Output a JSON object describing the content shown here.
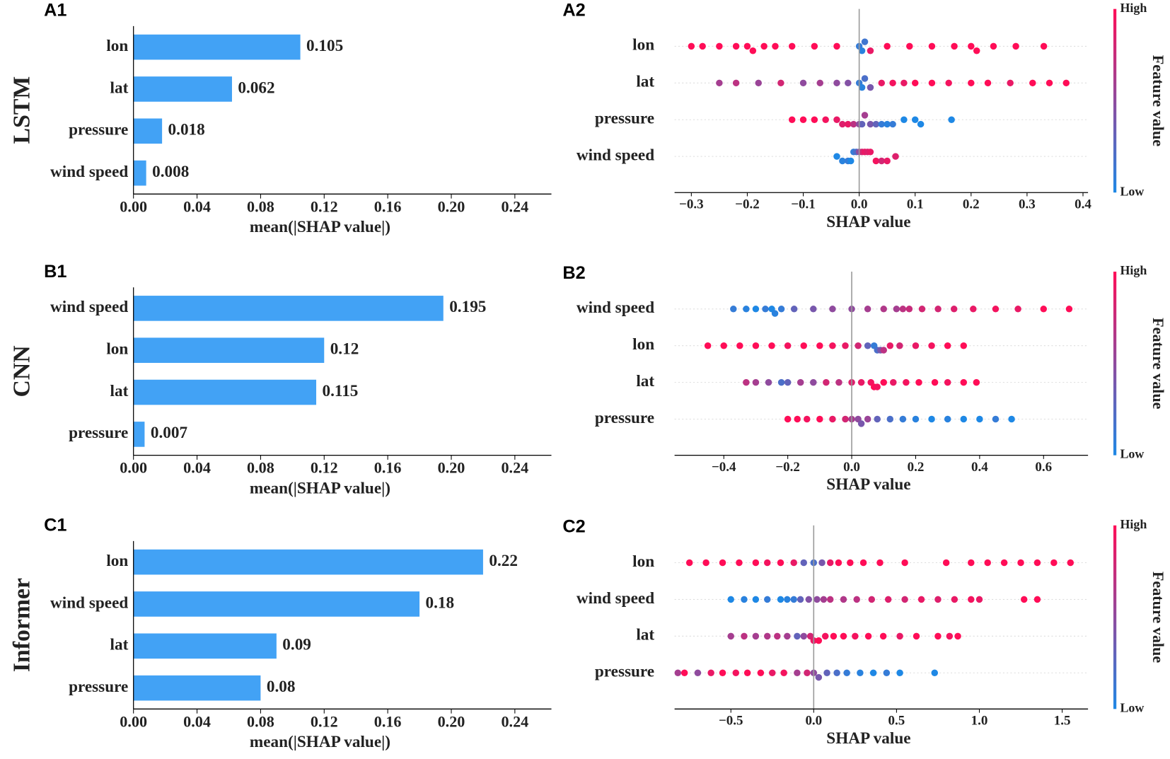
{
  "chart_data": [
    {
      "type": "bar",
      "panel": "A1",
      "row_label": "LSTM",
      "categories": [
        "lon",
        "lat",
        "pressure",
        "wind speed"
      ],
      "values": [
        0.105,
        0.062,
        0.018,
        0.008
      ],
      "color": "#42a2f5",
      "xlabel": "mean(|SHAP value|)",
      "xlim": [
        0,
        0.263
      ],
      "xticks": [
        {
          "value": 0,
          "label": "0.00"
        },
        0.04,
        0.08,
        0.12,
        0.16,
        {
          "value": 0.2,
          "label": "0.20"
        },
        0.24
      ]
    },
    {
      "type": "beeswarm",
      "panel": "A2",
      "xlabel": "SHAP value",
      "xlim": [
        -0.33,
        0.409
      ],
      "colors": [
        "#1e88e5",
        "#ff0d57"
      ],
      "colorbar_label": "Feature value",
      "colorbar_high": "High",
      "colorbar_low": "Low",
      "xticks": [
        {
          "value": -0.3,
          "label": "−0.3"
        },
        {
          "value": -0.2,
          "label": "−0.2"
        },
        {
          "value": -0.1,
          "label": "−0.1"
        },
        {
          "value": 0,
          "label": "0.0"
        },
        0.1,
        0.2,
        0.3,
        0.4
      ],
      "series": [
        {
          "name": "lon",
          "x": [
            -0.3,
            -0.28,
            -0.25,
            -0.22,
            -0.2,
            -0.19,
            -0.17,
            -0.15,
            -0.12,
            -0.08,
            -0.04,
            0,
            0.005,
            0.01,
            0.02,
            0.05,
            0.09,
            0.13,
            0.17,
            0.2,
            0.21,
            0.24,
            0.28,
            0.33
          ],
          "feature_values": [
            1,
            1,
            1,
            1,
            1,
            1,
            1,
            1,
            1,
            1,
            1,
            0.1,
            0.05,
            0.15,
            0.9,
            1,
            1,
            1,
            1,
            1,
            1,
            1,
            1,
            1
          ]
        },
        {
          "name": "lat",
          "x": [
            -0.25,
            -0.22,
            -0.18,
            -0.14,
            -0.1,
            -0.07,
            -0.04,
            -0.02,
            0,
            0.005,
            0.01,
            0.02,
            0.04,
            0.06,
            0.08,
            0.1,
            0.13,
            0.16,
            0.2,
            0.23,
            0.27,
            0.31,
            0.34,
            0.37
          ],
          "feature_values": [
            0.6,
            0.7,
            0.55,
            0.8,
            0.5,
            0.6,
            0.5,
            0.45,
            0.1,
            0.05,
            0.2,
            0.4,
            0.9,
            0.95,
            0.9,
            1,
            1,
            0.95,
            1,
            1,
            0.9,
            1,
            1,
            1
          ]
        },
        {
          "name": "pressure",
          "x": [
            -0.12,
            -0.1,
            -0.08,
            -0.06,
            -0.04,
            -0.03,
            -0.02,
            -0.01,
            0,
            0.005,
            0.01,
            0.02,
            0.03,
            0.04,
            0.05,
            0.06,
            0.08,
            0.1,
            0.11,
            0.165
          ],
          "feature_values": [
            1,
            1,
            1,
            0.95,
            0.9,
            0.85,
            0.9,
            0.7,
            0.5,
            0.3,
            0.6,
            0.4,
            0.3,
            0.1,
            0.05,
            0.1,
            0,
            0,
            0,
            0
          ]
        },
        {
          "name": "wind speed",
          "x": [
            -0.04,
            -0.03,
            -0.02,
            -0.015,
            -0.01,
            -0.005,
            0,
            0.005,
            0.01,
            0.015,
            0.02,
            0.03,
            0.04,
            0.05,
            0.065
          ],
          "feature_values": [
            0,
            0.05,
            0.1,
            0,
            0.1,
            0.2,
            0.5,
            0.8,
            0.9,
            0.85,
            0.9,
            0.95,
            0.8,
            0.9,
            0.85
          ]
        }
      ]
    },
    {
      "type": "bar",
      "panel": "B1",
      "row_label": "CNN",
      "categories": [
        "wind speed",
        "lon",
        "lat",
        "pressure"
      ],
      "values": [
        0.195,
        0.12,
        0.115,
        0.007
      ],
      "color": "#42a2f5",
      "xlabel": "mean(|SHAP value|)",
      "xlim": [
        0,
        0.263
      ],
      "xticks": [
        {
          "value": 0,
          "label": "0.00"
        },
        0.04,
        0.08,
        0.12,
        0.16,
        {
          "value": 0.2,
          "label": "0.20"
        },
        0.24
      ]
    },
    {
      "type": "beeswarm",
      "panel": "B2",
      "xlabel": "SHAP value",
      "xlim": [
        -0.554,
        0.739
      ],
      "colors": [
        "#1e88e5",
        "#ff0d57"
      ],
      "colorbar_label": "Feature value",
      "colorbar_high": "High",
      "colorbar_low": "Low",
      "xticks": [
        {
          "value": -0.4,
          "label": "−0.4"
        },
        {
          "value": -0.2,
          "label": "−0.2"
        },
        {
          "value": 0,
          "label": "0.0"
        },
        0.2,
        0.4,
        0.6
      ],
      "series": [
        {
          "name": "wind speed",
          "x": [
            -0.37,
            -0.33,
            -0.3,
            -0.27,
            -0.25,
            -0.24,
            -0.22,
            -0.18,
            -0.12,
            -0.06,
            0,
            0.05,
            0.1,
            0.14,
            0.16,
            0.18,
            0.22,
            0.27,
            0.32,
            0.38,
            0.45,
            0.52,
            0.6,
            0.68
          ],
          "feature_values": [
            0.1,
            0.05,
            0,
            0.1,
            0,
            0.05,
            0.1,
            0.3,
            0.4,
            0.5,
            0.5,
            0.6,
            0.65,
            0.6,
            0.7,
            0.75,
            0.8,
            0.8,
            0.85,
            0.9,
            0.95,
            0.9,
            1,
            1
          ]
        },
        {
          "name": "lon",
          "x": [
            -0.45,
            -0.4,
            -0.35,
            -0.3,
            -0.25,
            -0.2,
            -0.15,
            -0.1,
            -0.06,
            -0.02,
            0.02,
            0.05,
            0.07,
            0.08,
            0.09,
            0.1,
            0.12,
            0.15,
            0.2,
            0.25,
            0.3,
            0.35
          ],
          "feature_values": [
            1,
            1,
            1,
            1,
            1,
            0.95,
            1,
            1,
            0.95,
            0.9,
            0.8,
            0.3,
            0.1,
            0.2,
            0.4,
            0.7,
            0.9,
            0.8,
            0.9,
            0.95,
            1,
            1
          ]
        },
        {
          "name": "lat",
          "x": [
            -0.33,
            -0.3,
            -0.26,
            -0.22,
            -0.2,
            -0.16,
            -0.12,
            -0.08,
            -0.04,
            0,
            0.03,
            0.06,
            0.07,
            0.08,
            0.1,
            0.13,
            0.17,
            0.21,
            0.26,
            0.3,
            0.35,
            0.39
          ],
          "feature_values": [
            0.7,
            0.6,
            0.5,
            0.2,
            0.3,
            0.6,
            0.5,
            0.8,
            0.7,
            0.85,
            0.9,
            0.95,
            1,
            0.95,
            1,
            0.9,
            0.95,
            1,
            1,
            0.95,
            1,
            1
          ]
        },
        {
          "name": "pressure",
          "x": [
            -0.2,
            -0.17,
            -0.14,
            -0.1,
            -0.06,
            -0.02,
            0,
            0.02,
            0.03,
            0.05,
            0.08,
            0.12,
            0.16,
            0.2,
            0.25,
            0.3,
            0.35,
            0.4,
            0.45,
            0.5
          ],
          "feature_values": [
            1,
            1,
            0.95,
            1,
            0.9,
            0.8,
            0.6,
            0.5,
            0.4,
            0.55,
            0.3,
            0.2,
            0.1,
            0.05,
            0,
            0.05,
            0,
            0,
            0.1,
            0
          ]
        }
      ]
    },
    {
      "type": "bar",
      "panel": "C1",
      "row_label": "Informer",
      "categories": [
        "lon",
        "wind speed",
        "lat",
        "pressure"
      ],
      "values": [
        0.22,
        0.18,
        0.09,
        0.08
      ],
      "color": "#42a2f5",
      "xlabel": "mean(|SHAP value|)",
      "xlim": [
        0,
        0.263
      ],
      "xticks": [
        {
          "value": 0,
          "label": "0.00"
        },
        0.04,
        0.08,
        0.12,
        0.16,
        {
          "value": 0.2,
          "label": "0.20"
        },
        0.24
      ]
    },
    {
      "type": "beeswarm",
      "panel": "C2",
      "xlabel": "SHAP value",
      "xlim": [
        -0.84,
        1.656
      ],
      "colors": [
        "#1e88e5",
        "#ff0d57"
      ],
      "colorbar_label": "Feature value",
      "colorbar_high": "High",
      "colorbar_low": "Low",
      "xticks": [
        {
          "value": -0.5,
          "label": "−0.5"
        },
        {
          "value": 0,
          "label": "0.0"
        },
        0.5,
        {
          "value": 1,
          "label": "1.0"
        },
        1.5
      ],
      "series": [
        {
          "name": "lon",
          "x": [
            -0.75,
            -0.65,
            -0.55,
            -0.45,
            -0.35,
            -0.28,
            -0.2,
            -0.12,
            -0.06,
            0,
            0.05,
            0.1,
            0.15,
            0.22,
            0.3,
            0.4,
            0.55,
            0.8,
            0.95,
            1.05,
            1.15,
            1.25,
            1.35,
            1.45,
            1.55
          ],
          "feature_values": [
            1,
            1,
            1,
            1,
            1,
            0.95,
            1,
            0.9,
            0.3,
            0.2,
            0.4,
            0.9,
            1,
            1,
            1,
            1,
            1,
            1,
            1,
            1,
            1,
            1,
            1,
            1,
            1
          ]
        },
        {
          "name": "wind speed",
          "x": [
            -0.5,
            -0.42,
            -0.35,
            -0.28,
            -0.2,
            -0.16,
            -0.12,
            -0.08,
            -0.03,
            0.02,
            0.06,
            0.1,
            0.18,
            0.26,
            0.35,
            0.45,
            0.55,
            0.65,
            0.75,
            0.85,
            0.95,
            1.0,
            1.27,
            1.35
          ],
          "feature_values": [
            0,
            0.05,
            0,
            0.1,
            0,
            0.05,
            0.1,
            0.3,
            0.45,
            0.5,
            0.6,
            0.7,
            0.65,
            0.7,
            0.8,
            0.85,
            0.8,
            0.9,
            0.85,
            0.9,
            0.95,
            0.9,
            1,
            1
          ]
        },
        {
          "name": "lat",
          "x": [
            -0.5,
            -0.42,
            -0.35,
            -0.28,
            -0.22,
            -0.16,
            -0.1,
            -0.06,
            -0.02,
            0,
            0.03,
            0.07,
            0.12,
            0.18,
            0.25,
            0.33,
            0.42,
            0.52,
            0.62,
            0.75,
            0.82,
            0.87
          ],
          "feature_values": [
            0.6,
            0.7,
            0.6,
            0.65,
            0.7,
            0.6,
            0.3,
            0.5,
            0.8,
            0.9,
            1,
            0.95,
            1,
            1,
            0.95,
            1,
            1,
            0.9,
            1,
            1,
            0.95,
            1
          ]
        },
        {
          "name": "pressure",
          "x": [
            -0.82,
            -0.78,
            -0.7,
            -0.62,
            -0.55,
            -0.47,
            -0.4,
            -0.32,
            -0.25,
            -0.18,
            -0.1,
            -0.04,
            0,
            0.03,
            0.08,
            0.14,
            0.2,
            0.28,
            0.36,
            0.44,
            0.52,
            0.73
          ],
          "feature_values": [
            0.6,
            1,
            0.5,
            0.9,
            1,
            0.95,
            1,
            1,
            0.9,
            0.95,
            0.6,
            0.8,
            0.5,
            0.4,
            0.3,
            0.2,
            0.1,
            0.05,
            0,
            0.1,
            0,
            0
          ]
        }
      ]
    }
  ]
}
